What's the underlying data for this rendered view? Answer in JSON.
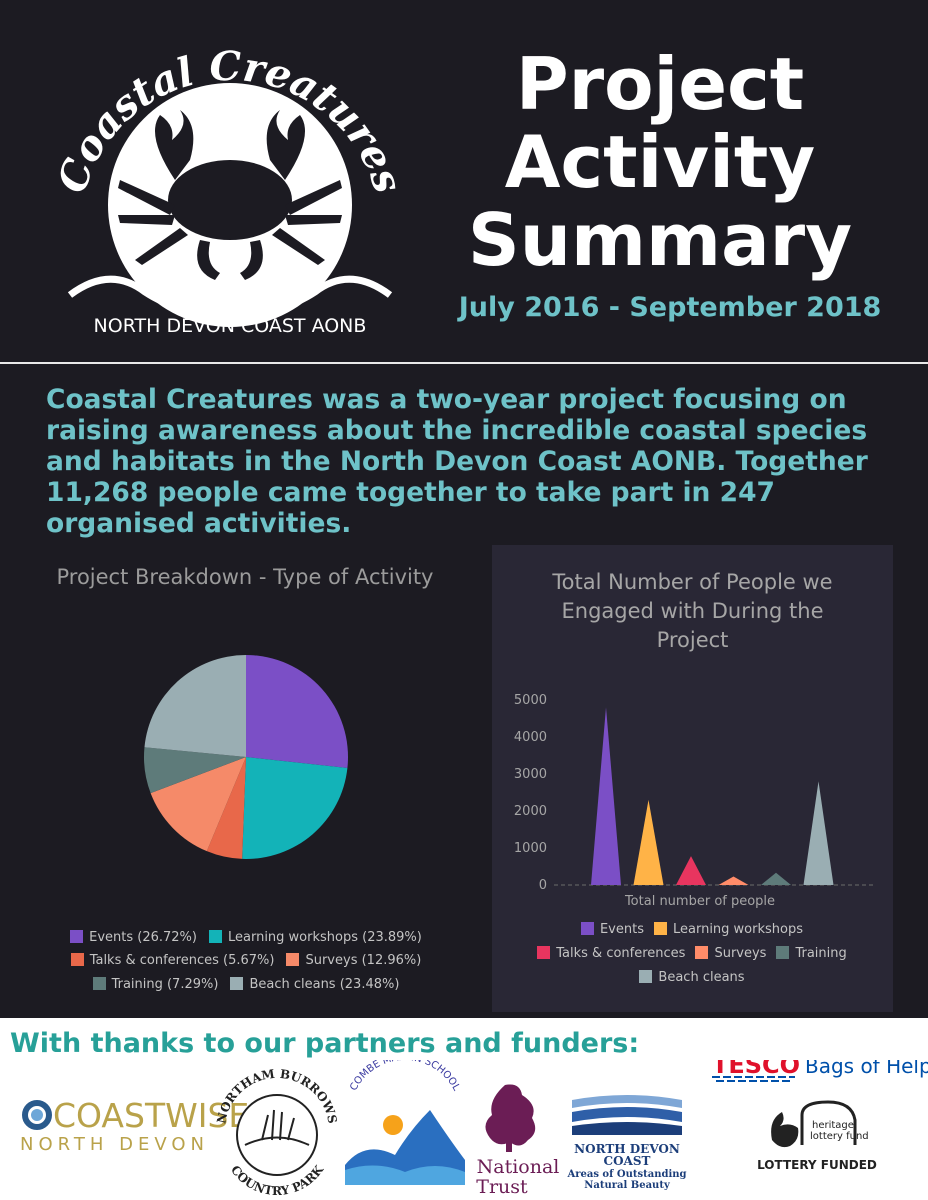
{
  "header": {
    "logo_arc_text": "Coastal Creatures",
    "logo_sub_text": "NORTH DEVON COAST AONB",
    "title_lines": [
      "Project",
      "Activity",
      "Summary"
    ],
    "dates": "July 2016 - September 2018"
  },
  "intro": "Coastal Creatures was a two-year project focusing on raising awareness about the incredible coastal species and habitats in the North Devon Coast AONB. Together 11,268 people came together to take part in 247 organised activities.",
  "colors": {
    "events": "#7b4fc6",
    "learning_workshops": "#13b3b8",
    "talks_conferences": "#e8684a",
    "surveys": "#f58a69",
    "training": "#5e7b7a",
    "beach_cleans": "#9aaeb3",
    "bar_events": "#7b4fc6",
    "bar_learning": "#ffb347",
    "bar_talks": "#e8355f",
    "bar_surveys": "#ff8c69",
    "bar_training": "#5e7b7a",
    "bar_beach": "#9aaeb3"
  },
  "chart_data": [
    {
      "type": "pie",
      "title": "Project Breakdown - Type of Activity",
      "legend_position": "bottom",
      "slices": [
        {
          "label": "Events (26.72%)",
          "value": 26.72,
          "color": "#7b4fc6"
        },
        {
          "label": "Learning workshops (23.89%)",
          "value": 23.89,
          "color": "#13b3b8"
        },
        {
          "label": "Talks & conferences (5.67%)",
          "value": 5.67,
          "color": "#e8684a"
        },
        {
          "label": "Surveys (12.96%)",
          "value": 12.96,
          "color": "#f58a69"
        },
        {
          "label": "Training (7.29%)",
          "value": 7.29,
          "color": "#5e7b7a"
        },
        {
          "label": "Beach cleans (23.48%)",
          "value": 23.48,
          "color": "#9aaeb3"
        }
      ]
    },
    {
      "type": "bar",
      "title": "Total Number of People we Engaged with During the Project",
      "title_lines": [
        "Total Number of People we",
        "Engaged with During the",
        "Project"
      ],
      "xlabel": "Total number of people",
      "ylim": [
        0,
        5000
      ],
      "yticks": [
        "5000",
        "4000",
        "3000",
        "2000",
        "1000",
        "0"
      ],
      "ytick_values": [
        5000,
        4000,
        3000,
        2000,
        1000,
        0
      ],
      "legend_position": "bottom",
      "categories": [
        "Events",
        "Learning workshops",
        "Talks & conferences",
        "Surveys",
        "Training",
        "Beach cleans"
      ],
      "values": [
        4800,
        2300,
        780,
        230,
        330,
        2800
      ],
      "colors": [
        "#7b4fc6",
        "#ffb347",
        "#e8355f",
        "#ff8c69",
        "#5e7b7a",
        "#9aaeb3"
      ]
    }
  ],
  "footer": {
    "thanks": "With thanks to our partners and funders:",
    "coastwise_1": "COASTWISE",
    "coastwise_2": "NORTH DEVON",
    "northam_top": "NORTHAM BURROWS",
    "northam_bottom": "COUNTRY PARK",
    "combe": "COMBE MARTIN SCHOOL",
    "nt_1": "National",
    "nt_2": "Trust",
    "ndc_1": "NORTH DEVON",
    "ndc_2": "COAST",
    "ndc_3": "Areas of Outstanding",
    "ndc_4": "Natural Beauty",
    "tesco_1": "TESCO",
    "tesco_2": "Bags of Help",
    "hlf_1": "heritage",
    "hlf_2": "lottery fund",
    "hlf_3": "LOTTERY FUNDED"
  }
}
